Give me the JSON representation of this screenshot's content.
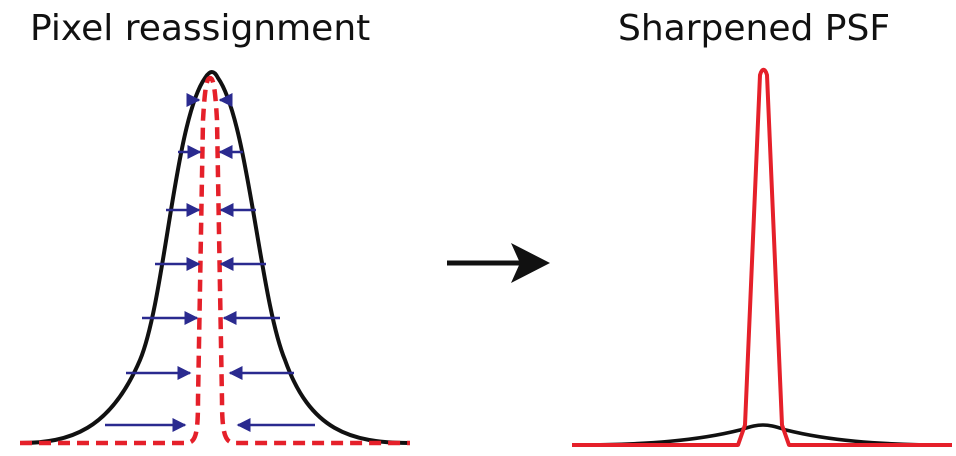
{
  "titles": {
    "left": "Pixel reassignment",
    "right": "Sharpened PSF"
  },
  "colors": {
    "original_psf": "#111111",
    "reassigned_psf": "#e5202a",
    "shift_arrows": "#2a2a8f",
    "transition_arrow": "#111111"
  }
}
